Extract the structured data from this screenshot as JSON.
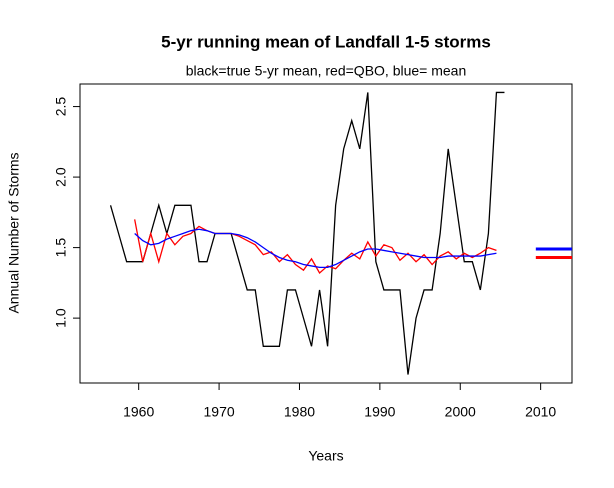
{
  "chart_data": {
    "type": "line",
    "title": "5-yr running mean of Landfall 1-5 storms",
    "subtitle": "black=true 5-yr mean, red=QBO, blue= mean",
    "x_label": "Years",
    "y_label": "Annual Number of Storms",
    "xlim": [
      1952.7,
      2013.9
    ],
    "ylim": [
      0.54,
      2.66
    ],
    "xticks": [
      1960,
      1970,
      1980,
      1990,
      2000,
      2010
    ],
    "yticks": [
      {
        "value": 1,
        "label": "1.0"
      },
      1.5,
      {
        "value": 2,
        "label": "2.0"
      },
      2.5
    ],
    "series": [
      {
        "color": "#000000",
        "x": [
          1956.5,
          1957.5,
          1958.5,
          1959.5,
          1960.5,
          1961.5,
          1962.5,
          1963.5,
          1964.5,
          1965.5,
          1966.5,
          1967.5,
          1968.5,
          1969.5,
          1970.5,
          1971.5,
          1972.5,
          1973.5,
          1974.5,
          1975.5,
          1976.5,
          1977.5,
          1978.5,
          1979.5,
          1980.5,
          1981.5,
          1982.5,
          1983.5,
          1984.5,
          1985.5,
          1986.5,
          1987.5,
          1988.5,
          1989.5,
          1990.5,
          1991.5,
          1992.5,
          1993.5,
          1994.5,
          1995.5,
          1996.5,
          1997.5,
          1998.5,
          1999.5,
          2000.5,
          2001.5,
          2002.5,
          2003.5,
          2004.5,
          2005.5
        ],
        "values": [
          1.8,
          1.6,
          1.4,
          1.4,
          1.4,
          1.6,
          1.8,
          1.6,
          1.8,
          1.8,
          1.8,
          1.4,
          1.4,
          1.6,
          1.6,
          1.6,
          1.4,
          1.2,
          1.2,
          0.8,
          0.8,
          0.8,
          1.2,
          1.2,
          1.0,
          0.8,
          1.2,
          0.8,
          1.8,
          2.2,
          2.4,
          2.2,
          2.6,
          1.4,
          1.2,
          1.2,
          1.2,
          0.6,
          1.0,
          1.2,
          1.2,
          1.6,
          2.2,
          1.8,
          1.4,
          1.4,
          1.2,
          1.6,
          2.6,
          2.6
        ]
      },
      {
        "color": "#ff0000",
        "x": [
          1959.5,
          1960.5,
          1961.5,
          1962.5,
          1963.5,
          1964.5,
          1965.5,
          1966.5,
          1967.5,
          1968.5,
          1969.5,
          1970.5,
          1971.5,
          1972.5,
          1973.5,
          1974.5,
          1975.5,
          1976.5,
          1977.5,
          1978.5,
          1979.5,
          1980.5,
          1981.5,
          1982.5,
          1983.5,
          1984.5,
          1985.5,
          1986.5,
          1987.5,
          1988.5,
          1989.5,
          1990.5,
          1991.5,
          1992.5,
          1993.5,
          1994.5,
          1995.5,
          1996.5,
          1997.5,
          1998.5,
          1999.5,
          2000.5,
          2001.5,
          2002.5,
          2003.5,
          2004.5
        ],
        "values": [
          1.7,
          1.4,
          1.6,
          1.4,
          1.6,
          1.52,
          1.58,
          1.6,
          1.65,
          1.62,
          1.6,
          1.6,
          1.6,
          1.58,
          1.55,
          1.52,
          1.45,
          1.47,
          1.4,
          1.45,
          1.38,
          1.34,
          1.42,
          1.32,
          1.37,
          1.35,
          1.41,
          1.46,
          1.42,
          1.54,
          1.44,
          1.52,
          1.5,
          1.41,
          1.46,
          1.4,
          1.45,
          1.38,
          1.44,
          1.47,
          1.42,
          1.46,
          1.43,
          1.46,
          1.5,
          1.48
        ]
      },
      {
        "color": "#0000ff",
        "x": [
          1959.5,
          1960.5,
          1961.5,
          1962.5,
          1963.5,
          1964.5,
          1965.5,
          1966.5,
          1967.5,
          1968.5,
          1969.5,
          1970.5,
          1971.5,
          1972.5,
          1973.5,
          1974.5,
          1975.5,
          1976.5,
          1977.5,
          1978.5,
          1979.5,
          1980.5,
          1981.5,
          1982.5,
          1983.5,
          1984.5,
          1985.5,
          1986.5,
          1987.5,
          1988.5,
          1989.5,
          1990.5,
          1991.5,
          1992.5,
          1993.5,
          1994.5,
          1995.5,
          1996.5,
          1997.5,
          1998.5,
          1999.5,
          2000.5,
          2001.5,
          2002.5,
          2003.5,
          2004.5
        ],
        "values": [
          1.6,
          1.55,
          1.52,
          1.53,
          1.56,
          1.58,
          1.6,
          1.62,
          1.63,
          1.62,
          1.6,
          1.6,
          1.6,
          1.59,
          1.57,
          1.54,
          1.5,
          1.46,
          1.43,
          1.41,
          1.4,
          1.38,
          1.37,
          1.36,
          1.36,
          1.38,
          1.41,
          1.44,
          1.47,
          1.49,
          1.49,
          1.48,
          1.47,
          1.46,
          1.45,
          1.44,
          1.43,
          1.43,
          1.43,
          1.44,
          1.44,
          1.44,
          1.44,
          1.44,
          1.45,
          1.46
        ]
      },
      {
        "color": "#0000ff",
        "width": 3,
        "x": [
          2009.4,
          2013.9
        ],
        "values": [
          1.49,
          1.49
        ]
      },
      {
        "color": "#ff0000",
        "width": 3,
        "x": [
          2009.4,
          2013.9
        ],
        "values": [
          1.43,
          1.43
        ]
      }
    ]
  }
}
